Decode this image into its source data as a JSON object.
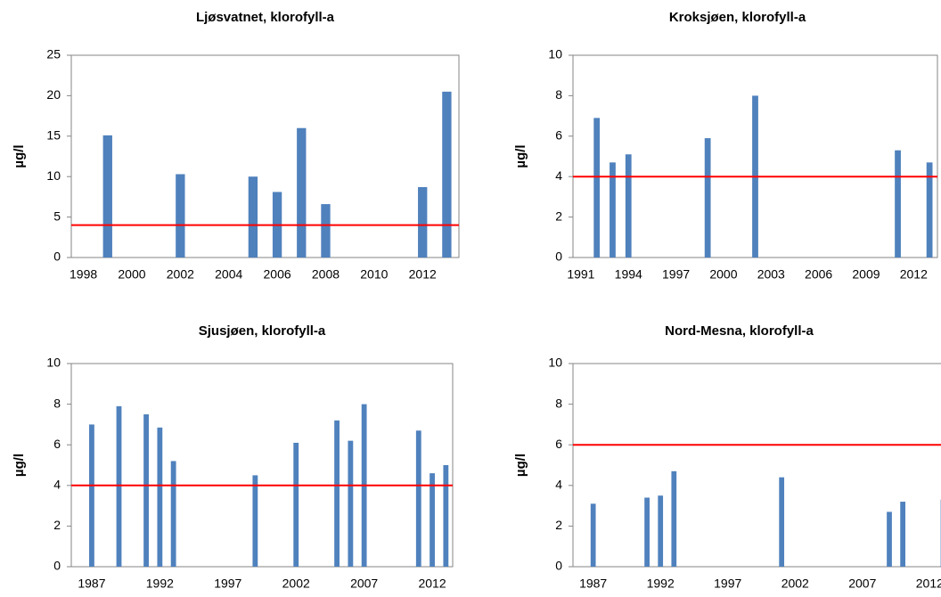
{
  "chart_data": [
    {
      "type": "bar",
      "title": "Ljøsvatnet, klorofyll-a",
      "y_label": "µg/l",
      "categories": [
        "1998",
        null,
        "2000",
        null,
        "2002",
        null,
        "2004",
        null,
        "2006",
        null,
        "2008",
        null,
        "2010",
        null,
        "2012",
        null
      ],
      "values": [
        null,
        15.1,
        null,
        null,
        10.3,
        null,
        null,
        10,
        8.1,
        16,
        6.6,
        null,
        null,
        null,
        8.7,
        20.5
      ],
      "color": "#4f81bd",
      "ylim": [
        0,
        25
      ],
      "yticks": [
        0,
        5,
        10,
        15,
        20,
        25
      ],
      "reference_line": 4,
      "reference_color": "#ff0000"
    },
    {
      "type": "bar",
      "title": "Kroksjøen, klorofyll-a",
      "y_label": "µg/l",
      "categories": [
        "1991",
        null,
        null,
        "1994",
        null,
        null,
        "1997",
        null,
        null,
        "2000",
        null,
        null,
        "2003",
        null,
        null,
        "2006",
        null,
        null,
        "2009",
        null,
        null,
        "2012",
        null
      ],
      "values": [
        null,
        6.9,
        4.7,
        5.1,
        null,
        null,
        null,
        null,
        5.9,
        null,
        null,
        8.0,
        null,
        null,
        null,
        null,
        null,
        null,
        null,
        null,
        5.3,
        null,
        4.7
      ],
      "color": "#4f81bd",
      "ylim": [
        0,
        10
      ],
      "yticks": [
        0,
        2,
        4,
        6,
        8,
        10
      ],
      "reference_line": 4,
      "reference_color": "#ff0000"
    },
    {
      "type": "bar",
      "title": "Sjusjøen, klorofyll-a",
      "y_label": "µg/l",
      "categories": [
        null,
        "1987",
        null,
        null,
        null,
        null,
        "1992",
        null,
        null,
        null,
        null,
        "1997",
        null,
        null,
        null,
        null,
        "2002",
        null,
        null,
        null,
        null,
        "2007",
        null,
        null,
        null,
        null,
        "2012",
        null
      ],
      "values": [
        null,
        7.0,
        null,
        7.9,
        null,
        7.5,
        6.85,
        5.2,
        null,
        null,
        null,
        null,
        null,
        4.5,
        null,
        null,
        6.1,
        null,
        null,
        7.2,
        6.2,
        8.0,
        null,
        null,
        null,
        6.7,
        4.6,
        5.0
      ],
      "color": "#4f81bd",
      "ylim": [
        0,
        10
      ],
      "yticks": [
        0,
        2,
        4,
        6,
        8,
        10
      ],
      "reference_line": 4,
      "reference_color": "#ff0000"
    },
    {
      "type": "bar",
      "title": "Nord-Mesna, klorofyll-a",
      "y_label": "µg/l",
      "categories": [
        null,
        "1987",
        null,
        null,
        null,
        null,
        "1992",
        null,
        null,
        null,
        null,
        "1997",
        null,
        null,
        null,
        null,
        "2002",
        null,
        null,
        null,
        null,
        "2007",
        null,
        null,
        null,
        null,
        "2012",
        null
      ],
      "values": [
        null,
        3.1,
        null,
        null,
        null,
        3.4,
        3.5,
        4.7,
        null,
        null,
        null,
        null,
        null,
        null,
        null,
        4.4,
        null,
        null,
        null,
        null,
        null,
        null,
        null,
        2.7,
        3.2,
        null,
        null,
        3.3
      ],
      "color": "#4f81bd",
      "ylim": [
        0,
        10
      ],
      "yticks": [
        0,
        2,
        4,
        6,
        8,
        10
      ],
      "reference_line": 6,
      "reference_color": "#ff0000"
    }
  ]
}
